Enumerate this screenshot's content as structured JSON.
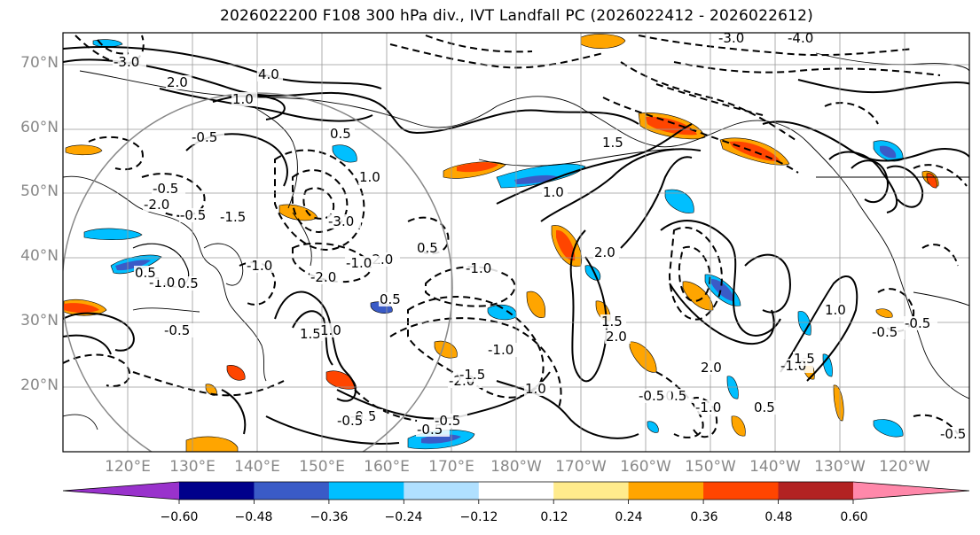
{
  "title": "2026022200 F108 300 hPa div., IVT Landfall PC (2026022412 - 2026022612)",
  "lat_labels": [
    "70°N",
    "60°N",
    "50°N",
    "40°N",
    "30°N",
    "20°N"
  ],
  "lon_labels": [
    "120°E",
    "130°E",
    "140°E",
    "150°E",
    "160°E",
    "170°E",
    "180°W",
    "170°W",
    "160°W",
    "150°W",
    "140°W",
    "130°W",
    "120°W"
  ],
  "contour_labels": [
    "-3.0",
    "-2.0",
    "-1.0",
    "-0.5",
    "-0.5",
    "-1.5",
    "-2.0",
    "-2.0",
    "-1.0",
    "-1.0",
    "-0.5",
    "-0.5",
    "-1.0",
    "-0.5",
    "-0.5",
    "-3.0",
    "-3.0",
    "-4.0",
    "-1.0",
    "-0.5",
    "-0.5",
    "-2.0",
    "-1.5",
    "-0.5",
    "-1.0",
    "-0.5",
    "-0.5",
    "-1.0",
    "-0.5",
    "-0.5",
    "2.0",
    "4.0",
    "1.0",
    "0.5",
    "0.5",
    "1.0",
    "1.5",
    "1.0",
    "2.0",
    "1.5",
    "0.5",
    "0.5",
    "1.5",
    "1.0",
    "2.0",
    "1.5",
    "2.0",
    "1.0",
    "0.5",
    "1.0",
    "0.5"
  ],
  "colorbar": {
    "colors": [
      "#9932CC",
      "#00008B",
      "#3A5BC7",
      "#00BFFF",
      "#B0E0FF",
      "#FFFFFF",
      "#FFEB8C",
      "#FFA500",
      "#FF4500",
      "#B22222",
      "#FF88AA"
    ],
    "ticks": [
      "−0.60",
      "−0.48",
      "−0.36",
      "−0.24",
      "−0.12",
      "0.12",
      "0.24",
      "0.36",
      "0.48",
      "0.60"
    ]
  },
  "colors": {
    "axis_label": "#888888",
    "grid": "#999999",
    "circle": "#888888"
  }
}
